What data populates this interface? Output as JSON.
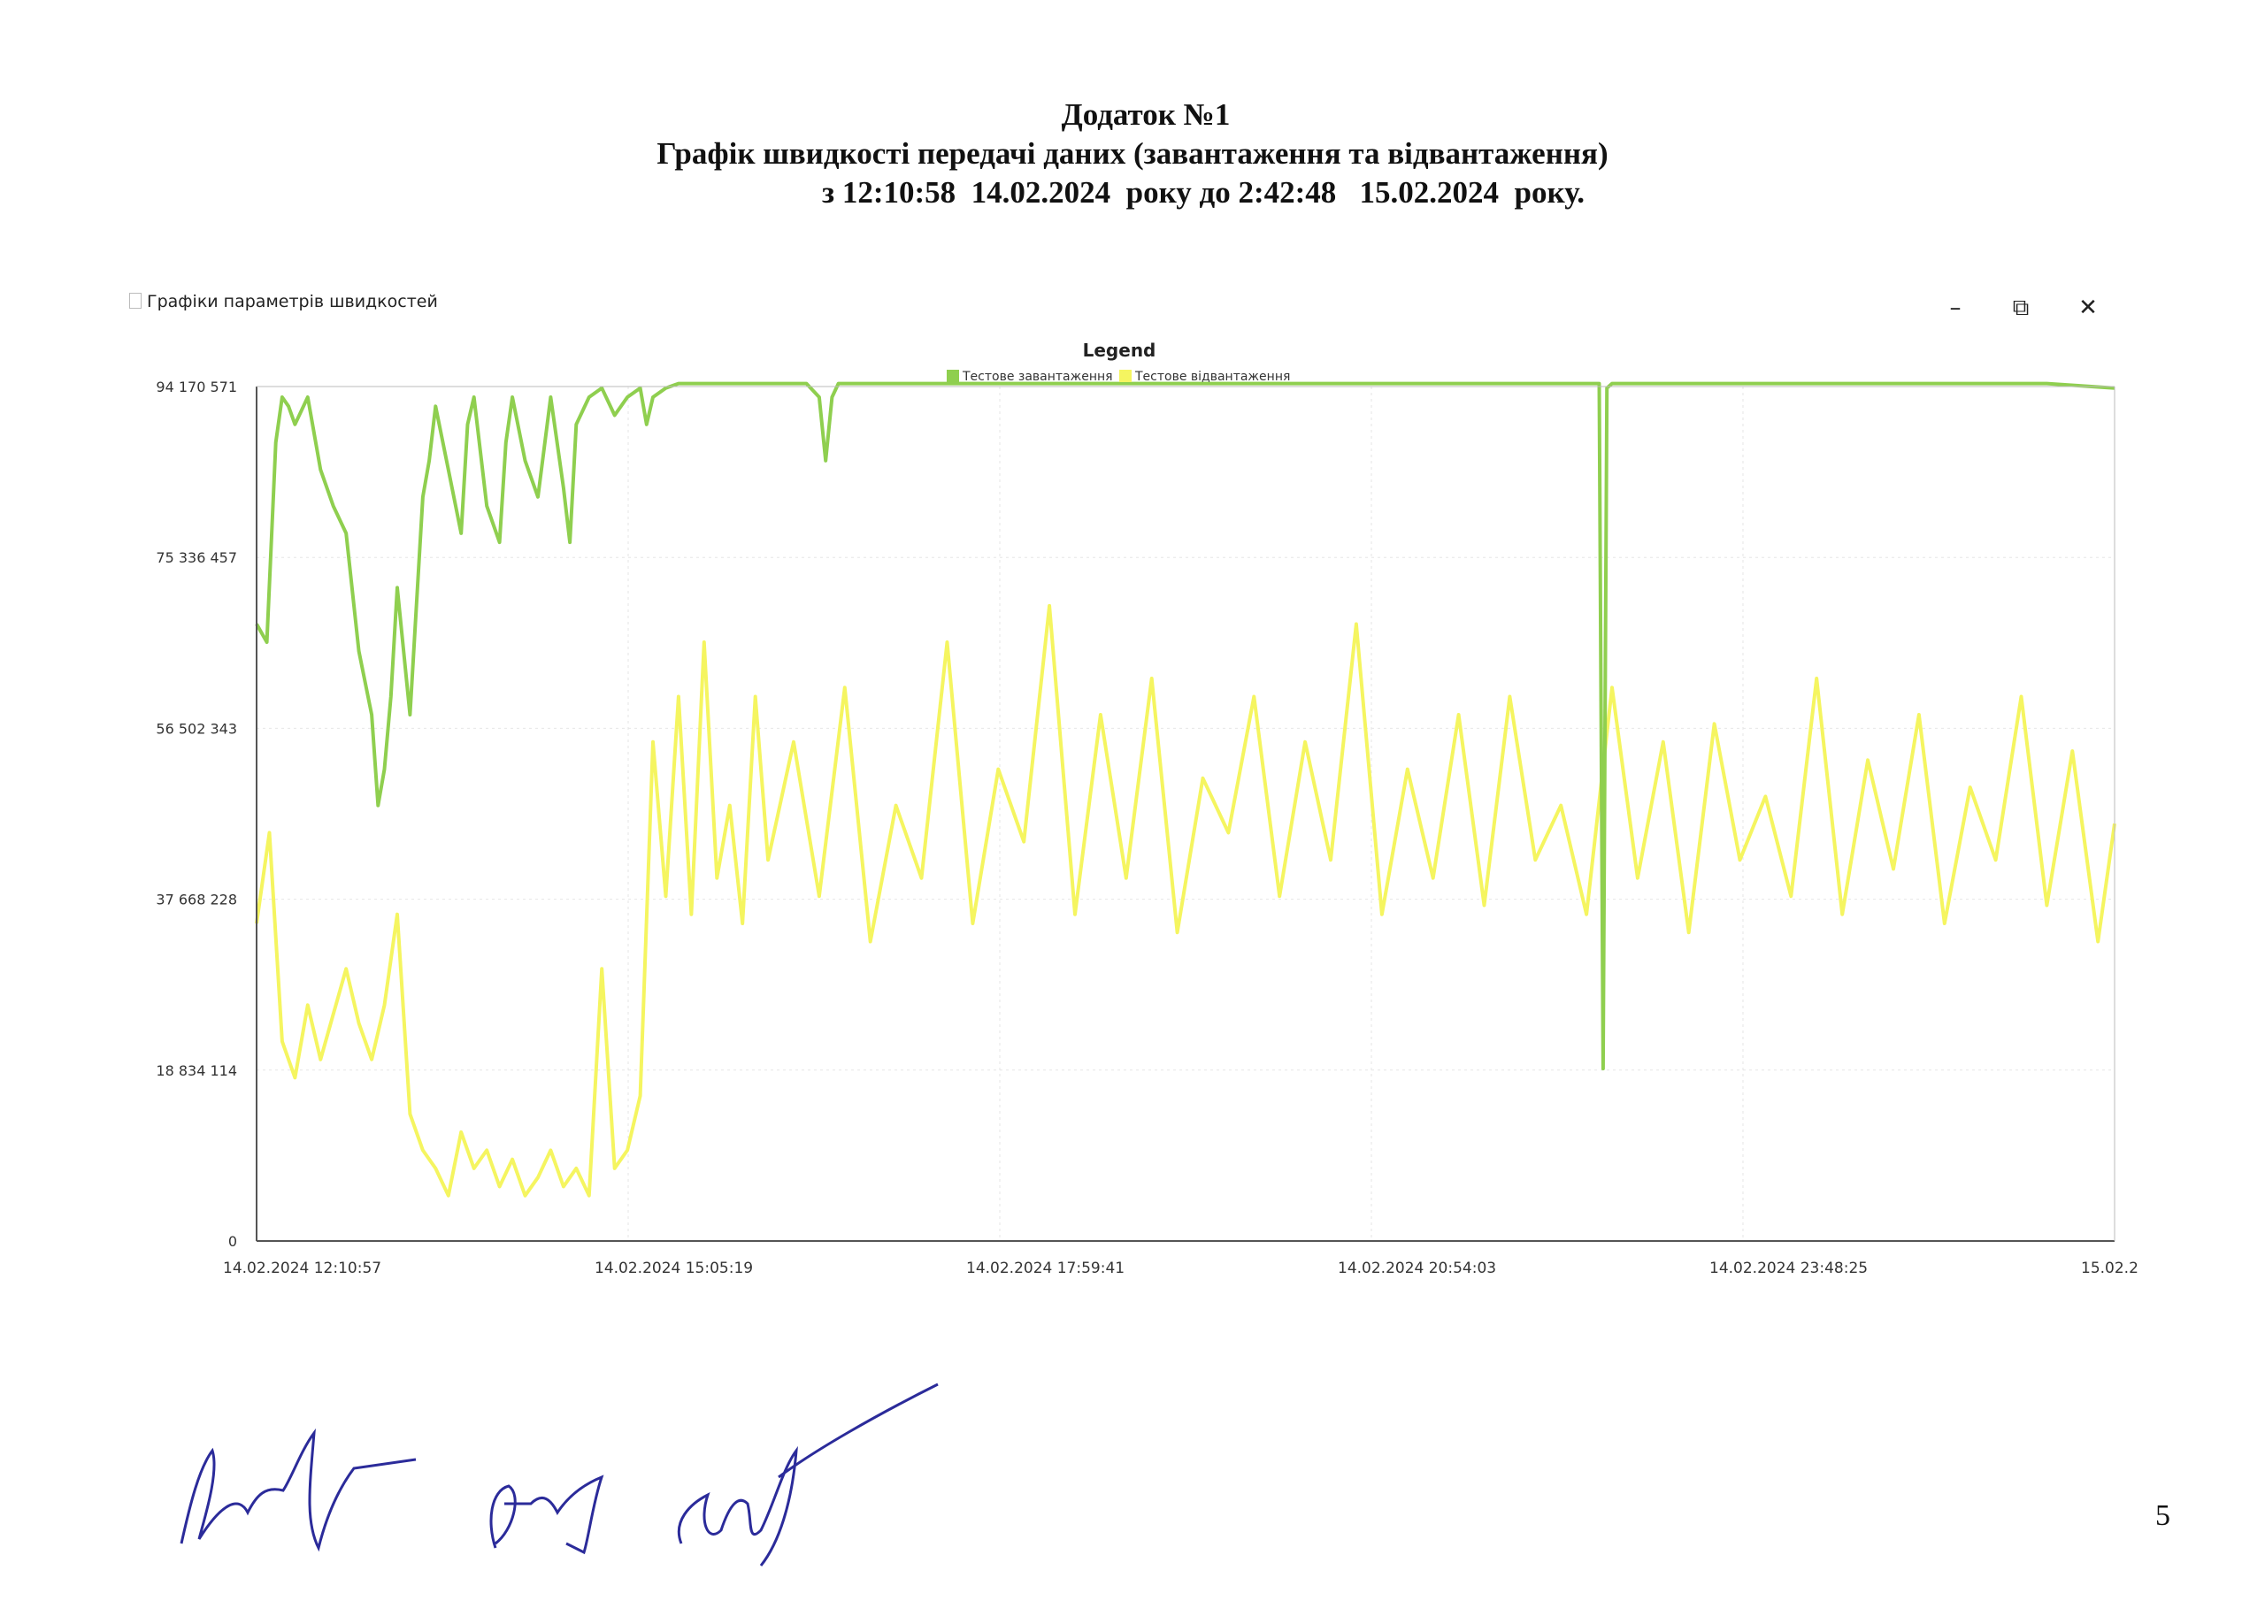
{
  "header": {
    "line1": "Додаток №1",
    "line2": "Графік швидкості передачі даних (завантаження та відвантаження)",
    "line3": "з 12:10:58  14.02.2024  року до 2:42:48   15.02.2024  року."
  },
  "window": {
    "title": "Графіки параметрів швидкостей",
    "minimize_label": "–",
    "restore_label": "⧉",
    "close_label": "✕"
  },
  "page_number": "5",
  "chart_data": {
    "type": "line",
    "legend_title": "Legend",
    "legend_position": "top-center",
    "y_ticks": [
      "0",
      "18 834 114",
      "37 668 228",
      "56 502 343",
      "75 336 457",
      "94 170 571"
    ],
    "y_tick_values": [
      0,
      18834114,
      37668228,
      56502343,
      75336457,
      94170571
    ],
    "ylim": [
      0,
      94170571
    ],
    "x_ticks": [
      "14.02.2024 12:10:57",
      "14.02.2024 15:05:19",
      "14.02.2024 17:59:41",
      "14.02.2024 20:54:03",
      "14.02.2024 23:48:25",
      "15.02.2"
    ],
    "x_tick_hours": [
      0,
      2.906,
      5.812,
      8.718,
      11.624,
      14.53
    ],
    "xlim_hours": [
      0,
      14.53
    ],
    "grid": true,
    "series": [
      {
        "name": "Тестове завантаження",
        "color": "#8fcf4f",
        "x": [
          0,
          0.08,
          0.15,
          0.2,
          0.25,
          0.3,
          0.4,
          0.5,
          0.6,
          0.7,
          0.8,
          0.9,
          0.95,
          1.0,
          1.05,
          1.1,
          1.2,
          1.3,
          1.35,
          1.4,
          1.5,
          1.6,
          1.65,
          1.7,
          1.8,
          1.9,
          1.95,
          2.0,
          2.1,
          2.2,
          2.3,
          2.4,
          2.45,
          2.5,
          2.6,
          2.7,
          2.8,
          2.9,
          3.0,
          3.05,
          3.1,
          3.2,
          3.3,
          3.5,
          4.0,
          4.3,
          4.4,
          4.45,
          4.5,
          4.55,
          4.6,
          5.0,
          6.0,
          7.0,
          8.0,
          9.0,
          10.0,
          10.5,
          10.53,
          10.56,
          10.6,
          11.0,
          12.0,
          13.0,
          14.0,
          14.53
        ],
        "values": [
          68000000,
          66000000,
          88000000,
          93000000,
          92000000,
          90000000,
          93000000,
          85000000,
          81000000,
          78000000,
          65000000,
          58000000,
          48000000,
          52000000,
          60000000,
          72000000,
          58000000,
          82000000,
          86000000,
          92000000,
          85000000,
          78000000,
          90000000,
          93000000,
          81000000,
          77000000,
          88000000,
          93000000,
          86000000,
          82000000,
          93000000,
          83000000,
          77000000,
          90000000,
          93000000,
          94000000,
          91000000,
          93000000,
          94000000,
          90000000,
          93000000,
          94000000,
          94500000,
          94500000,
          94500000,
          94500000,
          93000000,
          86000000,
          93000000,
          94500000,
          94500000,
          94500000,
          94500000,
          94500000,
          94500000,
          94500000,
          94500000,
          94500000,
          19000000,
          94000000,
          94500000,
          94500000,
          94500000,
          94500000,
          94500000,
          94000000
        ]
      },
      {
        "name": "Тестове відвантаження",
        "color": "#f5f560",
        "x": [
          0,
          0.1,
          0.2,
          0.3,
          0.4,
          0.5,
          0.6,
          0.7,
          0.8,
          0.9,
          1.0,
          1.1,
          1.2,
          1.3,
          1.4,
          1.5,
          1.6,
          1.7,
          1.8,
          1.9,
          2.0,
          2.1,
          2.2,
          2.3,
          2.4,
          2.5,
          2.6,
          2.7,
          2.8,
          2.9,
          3.0,
          3.1,
          3.2,
          3.3,
          3.4,
          3.5,
          3.6,
          3.7,
          3.8,
          3.9,
          4.0,
          4.2,
          4.4,
          4.6,
          4.8,
          5.0,
          5.2,
          5.4,
          5.6,
          5.8,
          6.0,
          6.2,
          6.4,
          6.6,
          6.8,
          7.0,
          7.2,
          7.4,
          7.6,
          7.8,
          8.0,
          8.2,
          8.4,
          8.6,
          8.8,
          9.0,
          9.2,
          9.4,
          9.6,
          9.8,
          10.0,
          10.2,
          10.4,
          10.6,
          10.8,
          11.0,
          11.2,
          11.4,
          11.6,
          11.8,
          12.0,
          12.2,
          12.4,
          12.6,
          12.8,
          13.0,
          13.2,
          13.4,
          13.6,
          13.8,
          14.0,
          14.2,
          14.4,
          14.53
        ],
        "values": [
          35000000,
          45000000,
          22000000,
          18000000,
          26000000,
          20000000,
          25000000,
          30000000,
          24000000,
          20000000,
          26000000,
          36000000,
          14000000,
          10000000,
          8000000,
          5000000,
          12000000,
          8000000,
          10000000,
          6000000,
          9000000,
          5000000,
          7000000,
          10000000,
          6000000,
          8000000,
          5000000,
          30000000,
          8000000,
          10000000,
          16000000,
          55000000,
          38000000,
          60000000,
          36000000,
          66000000,
          40000000,
          48000000,
          35000000,
          60000000,
          42000000,
          55000000,
          38000000,
          61000000,
          33000000,
          48000000,
          40000000,
          66000000,
          35000000,
          52000000,
          44000000,
          70000000,
          36000000,
          58000000,
          40000000,
          62000000,
          34000000,
          51000000,
          45000000,
          60000000,
          38000000,
          55000000,
          42000000,
          68000000,
          36000000,
          52000000,
          40000000,
          58000000,
          37000000,
          60000000,
          42000000,
          48000000,
          36000000,
          61000000,
          40000000,
          55000000,
          34000000,
          57000000,
          42000000,
          49000000,
          38000000,
          62000000,
          36000000,
          53000000,
          41000000,
          58000000,
          35000000,
          50000000,
          42000000,
          60000000,
          37000000,
          54000000,
          33000000,
          46000000
        ]
      }
    ]
  }
}
